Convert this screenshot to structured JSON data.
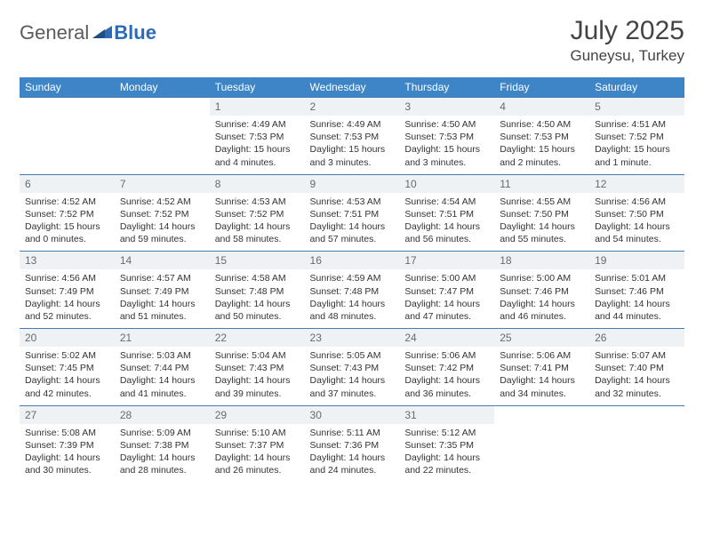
{
  "brand": {
    "part1": "General",
    "part2": "Blue"
  },
  "title": "July 2025",
  "location": "Guneysu, Turkey",
  "colors": {
    "header_bg": "#3d85c6",
    "header_text": "#ffffff",
    "daynum_bg": "#eef2f5",
    "daynum_text": "#6a6a6a",
    "cell_border": "#4a7bb0",
    "body_text": "#333333",
    "logo_gray": "#5a5a5a",
    "logo_blue": "#2d6cb5"
  },
  "weekdays": [
    "Sunday",
    "Monday",
    "Tuesday",
    "Wednesday",
    "Thursday",
    "Friday",
    "Saturday"
  ],
  "weeks": [
    [
      null,
      null,
      {
        "n": "1",
        "sr": "Sunrise: 4:49 AM",
        "ss": "Sunset: 7:53 PM",
        "dl": "Daylight: 15 hours and 4 minutes."
      },
      {
        "n": "2",
        "sr": "Sunrise: 4:49 AM",
        "ss": "Sunset: 7:53 PM",
        "dl": "Daylight: 15 hours and 3 minutes."
      },
      {
        "n": "3",
        "sr": "Sunrise: 4:50 AM",
        "ss": "Sunset: 7:53 PM",
        "dl": "Daylight: 15 hours and 3 minutes."
      },
      {
        "n": "4",
        "sr": "Sunrise: 4:50 AM",
        "ss": "Sunset: 7:53 PM",
        "dl": "Daylight: 15 hours and 2 minutes."
      },
      {
        "n": "5",
        "sr": "Sunrise: 4:51 AM",
        "ss": "Sunset: 7:52 PM",
        "dl": "Daylight: 15 hours and 1 minute."
      }
    ],
    [
      {
        "n": "6",
        "sr": "Sunrise: 4:52 AM",
        "ss": "Sunset: 7:52 PM",
        "dl": "Daylight: 15 hours and 0 minutes."
      },
      {
        "n": "7",
        "sr": "Sunrise: 4:52 AM",
        "ss": "Sunset: 7:52 PM",
        "dl": "Daylight: 14 hours and 59 minutes."
      },
      {
        "n": "8",
        "sr": "Sunrise: 4:53 AM",
        "ss": "Sunset: 7:52 PM",
        "dl": "Daylight: 14 hours and 58 minutes."
      },
      {
        "n": "9",
        "sr": "Sunrise: 4:53 AM",
        "ss": "Sunset: 7:51 PM",
        "dl": "Daylight: 14 hours and 57 minutes."
      },
      {
        "n": "10",
        "sr": "Sunrise: 4:54 AM",
        "ss": "Sunset: 7:51 PM",
        "dl": "Daylight: 14 hours and 56 minutes."
      },
      {
        "n": "11",
        "sr": "Sunrise: 4:55 AM",
        "ss": "Sunset: 7:50 PM",
        "dl": "Daylight: 14 hours and 55 minutes."
      },
      {
        "n": "12",
        "sr": "Sunrise: 4:56 AM",
        "ss": "Sunset: 7:50 PM",
        "dl": "Daylight: 14 hours and 54 minutes."
      }
    ],
    [
      {
        "n": "13",
        "sr": "Sunrise: 4:56 AM",
        "ss": "Sunset: 7:49 PM",
        "dl": "Daylight: 14 hours and 52 minutes."
      },
      {
        "n": "14",
        "sr": "Sunrise: 4:57 AM",
        "ss": "Sunset: 7:49 PM",
        "dl": "Daylight: 14 hours and 51 minutes."
      },
      {
        "n": "15",
        "sr": "Sunrise: 4:58 AM",
        "ss": "Sunset: 7:48 PM",
        "dl": "Daylight: 14 hours and 50 minutes."
      },
      {
        "n": "16",
        "sr": "Sunrise: 4:59 AM",
        "ss": "Sunset: 7:48 PM",
        "dl": "Daylight: 14 hours and 48 minutes."
      },
      {
        "n": "17",
        "sr": "Sunrise: 5:00 AM",
        "ss": "Sunset: 7:47 PM",
        "dl": "Daylight: 14 hours and 47 minutes."
      },
      {
        "n": "18",
        "sr": "Sunrise: 5:00 AM",
        "ss": "Sunset: 7:46 PM",
        "dl": "Daylight: 14 hours and 46 minutes."
      },
      {
        "n": "19",
        "sr": "Sunrise: 5:01 AM",
        "ss": "Sunset: 7:46 PM",
        "dl": "Daylight: 14 hours and 44 minutes."
      }
    ],
    [
      {
        "n": "20",
        "sr": "Sunrise: 5:02 AM",
        "ss": "Sunset: 7:45 PM",
        "dl": "Daylight: 14 hours and 42 minutes."
      },
      {
        "n": "21",
        "sr": "Sunrise: 5:03 AM",
        "ss": "Sunset: 7:44 PM",
        "dl": "Daylight: 14 hours and 41 minutes."
      },
      {
        "n": "22",
        "sr": "Sunrise: 5:04 AM",
        "ss": "Sunset: 7:43 PM",
        "dl": "Daylight: 14 hours and 39 minutes."
      },
      {
        "n": "23",
        "sr": "Sunrise: 5:05 AM",
        "ss": "Sunset: 7:43 PM",
        "dl": "Daylight: 14 hours and 37 minutes."
      },
      {
        "n": "24",
        "sr": "Sunrise: 5:06 AM",
        "ss": "Sunset: 7:42 PM",
        "dl": "Daylight: 14 hours and 36 minutes."
      },
      {
        "n": "25",
        "sr": "Sunrise: 5:06 AM",
        "ss": "Sunset: 7:41 PM",
        "dl": "Daylight: 14 hours and 34 minutes."
      },
      {
        "n": "26",
        "sr": "Sunrise: 5:07 AM",
        "ss": "Sunset: 7:40 PM",
        "dl": "Daylight: 14 hours and 32 minutes."
      }
    ],
    [
      {
        "n": "27",
        "sr": "Sunrise: 5:08 AM",
        "ss": "Sunset: 7:39 PM",
        "dl": "Daylight: 14 hours and 30 minutes."
      },
      {
        "n": "28",
        "sr": "Sunrise: 5:09 AM",
        "ss": "Sunset: 7:38 PM",
        "dl": "Daylight: 14 hours and 28 minutes."
      },
      {
        "n": "29",
        "sr": "Sunrise: 5:10 AM",
        "ss": "Sunset: 7:37 PM",
        "dl": "Daylight: 14 hours and 26 minutes."
      },
      {
        "n": "30",
        "sr": "Sunrise: 5:11 AM",
        "ss": "Sunset: 7:36 PM",
        "dl": "Daylight: 14 hours and 24 minutes."
      },
      {
        "n": "31",
        "sr": "Sunrise: 5:12 AM",
        "ss": "Sunset: 7:35 PM",
        "dl": "Daylight: 14 hours and 22 minutes."
      },
      null,
      null
    ]
  ]
}
